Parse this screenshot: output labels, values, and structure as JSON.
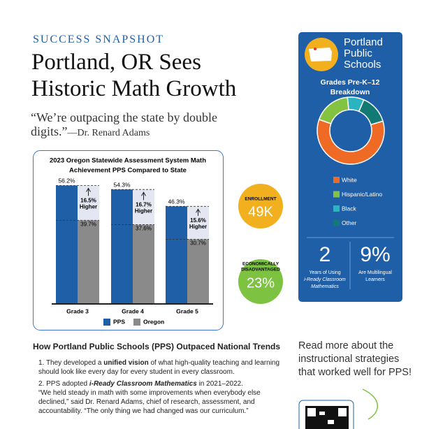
{
  "header": {
    "kicker": "SUCCESS SNAPSHOT",
    "title_lines": [
      "Portland, OR Sees",
      "Historic Math Growth"
    ]
  },
  "quote": {
    "text": "“We’re outpacing the state by double digits.”",
    "attribution": "—Dr. Renard Adams"
  },
  "bar_chart": {
    "type": "bar",
    "title_lines": [
      "2023 Oregon Statewide Assessment System Math",
      "Achievement PPS Compared to State"
    ],
    "categories": [
      "Grade 3",
      "Grade 4",
      "Grade 5"
    ],
    "series": [
      {
        "name": "PPS",
        "color": "#1f5fa8",
        "values": [
          56.2,
          54.3,
          46.3
        ],
        "value_labels": [
          "56.2%",
          "54.3%",
          "46.3%"
        ]
      },
      {
        "name": "Oregon",
        "color": "#8a8a8a",
        "values": [
          39.7,
          37.6,
          30.7
        ],
        "value_labels": [
          "39.7%",
          "37.6%",
          "30.7%"
        ]
      }
    ],
    "differences": [
      [
        "16.5%",
        "Higher"
      ],
      [
        "16.7%",
        "Higher"
      ],
      [
        "15.6%",
        "Higher"
      ]
    ],
    "ylim": [
      0,
      60
    ]
  },
  "stats": [
    {
      "label": "ENROLLMENT",
      "value": "49K"
    },
    {
      "label_lines": [
        "ECONOMICALLY",
        "DISADVANTAGED"
      ],
      "value": "23%"
    }
  ],
  "district": {
    "name_lines": [
      "Portland",
      "Public",
      "Schools"
    ],
    "chart_title_lines": [
      "Grades Pre-K–12",
      "Breakdown"
    ],
    "donut": {
      "type": "pie",
      "categories": [
        "White",
        "Hispanic/Latino",
        "Black",
        "Other"
      ],
      "values": [
        60,
        18,
        8,
        14
      ],
      "colors": [
        "#ef6a25",
        "#84c341",
        "#2bb3c0",
        "#137a73"
      ]
    },
    "facts": [
      {
        "value": "2",
        "lines": [
          "Years of Using",
          "i-Ready Classroom",
          "Mathematics"
        ]
      },
      {
        "value": "9%",
        "lines": [
          "Are Multilingual",
          "Learners"
        ]
      }
    ]
  },
  "section": {
    "title": "How Portland Public Schools (PPS) Outpaced National Trends",
    "items": [
      {
        "number": "1.",
        "parts": [
          "They developed a ",
          "unified vision",
          " of what high-quality teaching and learning should look like every day for every student in every classroom."
        ]
      },
      {
        "number": "2.",
        "parts": [
          "PPS adopted ",
          "i-Ready Classroom Mathematics",
          " in 2021–2022."
        ],
        "quote": "“We held steady in math with some improvements when everybody else declined,” said Dr. Renard Adams, chief of research, assessment, and accountability. “The only thing we had changed was our curriculum.”"
      }
    ]
  },
  "sidebar": {
    "text": "Read more about the instructional strategies that worked well for PPS!"
  }
}
